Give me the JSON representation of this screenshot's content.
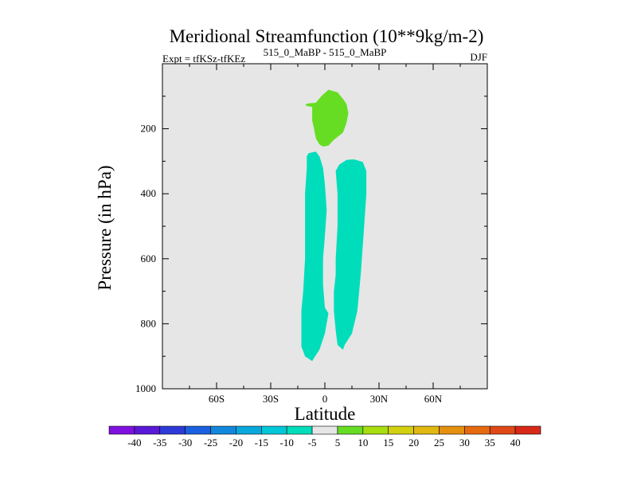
{
  "chart_data": {
    "type": "contour",
    "title": "Meridional Streamfunction (10**9kg/m-2)",
    "subtitle_left": "Expt = tfKSz-tfKEz",
    "subtitle_center": "515_0_MaBP - 515_0_MaBP",
    "subtitle_right": "DJF",
    "xlabel": "Latitude",
    "ylabel": "Pressure (in hPa)",
    "xlim": [
      -90,
      90
    ],
    "ylim": [
      1000,
      0
    ],
    "x_ticks": [
      {
        "value": -60,
        "label": "60S"
      },
      {
        "value": -30,
        "label": "30S"
      },
      {
        "value": 0,
        "label": "0"
      },
      {
        "value": 30,
        "label": "30N"
      },
      {
        "value": 60,
        "label": "60N"
      }
    ],
    "y_ticks": [
      {
        "value": 200,
        "label": "200"
      },
      {
        "value": 400,
        "label": "400"
      },
      {
        "value": 600,
        "label": "600"
      },
      {
        "value": 800,
        "label": "800"
      },
      {
        "value": 1000,
        "label": "1000"
      }
    ],
    "background_color": "#e6e6e6",
    "filled_regions": [
      {
        "name": "positive-cell-upper",
        "level": 5,
        "color": "#66dd22",
        "polygon": [
          [
            -11,
            126
          ],
          [
            -9,
            122
          ],
          [
            -5,
            120
          ],
          [
            -2,
            100
          ],
          [
            2,
            80
          ],
          [
            7,
            88
          ],
          [
            10,
            108
          ],
          [
            12,
            124
          ],
          [
            13,
            152
          ],
          [
            12,
            182
          ],
          [
            10,
            212
          ],
          [
            5,
            234
          ],
          [
            2,
            252
          ],
          [
            -1,
            255
          ],
          [
            -3,
            248
          ],
          [
            -5,
            230
          ],
          [
            -6,
            200
          ],
          [
            -7,
            175
          ],
          [
            -7,
            150
          ],
          [
            -7,
            133
          ],
          [
            -10,
            130
          ]
        ]
      },
      {
        "name": "negative-cell-left",
        "level": -5,
        "color": "#00ddbb",
        "polygon": [
          [
            -9,
            275
          ],
          [
            -5,
            270
          ],
          [
            -3,
            285
          ],
          [
            -1,
            320
          ],
          [
            0,
            370
          ],
          [
            1,
            450
          ],
          [
            0,
            530
          ],
          [
            -1,
            600
          ],
          [
            -1,
            680
          ],
          [
            0,
            750
          ],
          [
            2,
            768
          ],
          [
            0,
            830
          ],
          [
            -3,
            880
          ],
          [
            -6,
            905
          ],
          [
            -7,
            915
          ],
          [
            -11,
            900
          ],
          [
            -13,
            870
          ],
          [
            -13,
            800
          ],
          [
            -13,
            760
          ],
          [
            -12,
            700
          ],
          [
            -11,
            600
          ],
          [
            -11,
            500
          ],
          [
            -11,
            400
          ],
          [
            -10,
            320
          ],
          [
            -10,
            285
          ]
        ]
      },
      {
        "name": "negative-cell-right",
        "level": -5,
        "color": "#00ddbb",
        "polygon": [
          [
            8,
            310
          ],
          [
            12,
            296
          ],
          [
            16,
            294
          ],
          [
            21,
            302
          ],
          [
            23,
            330
          ],
          [
            23,
            400
          ],
          [
            22,
            480
          ],
          [
            21,
            560
          ],
          [
            20,
            640
          ],
          [
            19,
            700
          ],
          [
            18,
            760
          ],
          [
            15,
            830
          ],
          [
            11,
            865
          ],
          [
            10,
            880
          ],
          [
            7,
            865
          ],
          [
            6,
            820
          ],
          [
            5,
            760
          ],
          [
            5,
            700
          ],
          [
            6,
            650
          ],
          [
            6,
            600
          ],
          [
            7,
            500
          ],
          [
            7,
            400
          ],
          [
            6,
            330
          ]
        ]
      }
    ],
    "colorbar": {
      "levels": [
        "-40",
        "-35",
        "-30",
        "-25",
        "-20",
        "-15",
        "-10",
        "-5",
        "5",
        "10",
        "15",
        "20",
        "25",
        "30",
        "35",
        "40"
      ],
      "colors": [
        "#8010e0",
        "#5a18d8",
        "#2e3ad8",
        "#1a60e0",
        "#1188dd",
        "#08a8dd",
        "#00c8d8",
        "#00ddbb",
        "#e6e6e6",
        "#66dd22",
        "#a8dd10",
        "#d2d010",
        "#e0b810",
        "#e69010",
        "#e66a10",
        "#e04818",
        "#d82818"
      ]
    }
  }
}
